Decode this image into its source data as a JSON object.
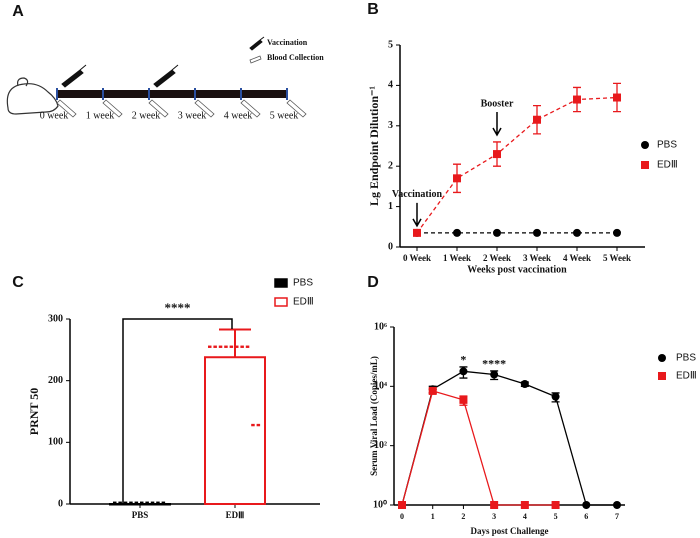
{
  "diagram": {
    "panel": "A",
    "legend": [
      "Vaccination",
      "Blood Collection"
    ],
    "weeks": [
      "0 week",
      "1 week",
      "2 week",
      "3 week",
      "4 week",
      "5 week"
    ]
  },
  "chart_data": [
    {
      "panel": "B",
      "type": "line",
      "categories": [
        "0 Week",
        "1 Week",
        "2 Week",
        "3 Week",
        "4 Week",
        "5 Week"
      ],
      "ylim": [
        0,
        5
      ],
      "yticks": [
        0,
        1,
        2,
        3,
        4,
        5
      ],
      "ylabel": "Lg Endpoint Dilution⁻¹",
      "xlabel": "Weeks post vaccination",
      "line_style": "dashed",
      "legend": "right",
      "annotations": [
        {
          "text": "Vaccination",
          "x": "0 Week"
        },
        {
          "text": "Booster",
          "x": "2 Week"
        }
      ],
      "series": [
        {
          "name": "PBS",
          "color": "#000000",
          "marker": "circle",
          "values": [
            0.35,
            0.35,
            0.35,
            0.35,
            0.35,
            0.35
          ]
        },
        {
          "name": "EDⅢ",
          "color": "#e8191c",
          "marker": "square",
          "values": [
            0.35,
            1.7,
            2.3,
            3.15,
            3.65,
            3.7
          ],
          "errors": [
            0,
            0.35,
            0.3,
            0.35,
            0.3,
            0.35
          ]
        }
      ]
    },
    {
      "panel": "C",
      "type": "bar",
      "categories": [
        "PBS",
        "EDⅢ"
      ],
      "colors": [
        "#000000",
        "#e8191c"
      ],
      "filled": [
        true,
        false
      ],
      "values": [
        0,
        238
      ],
      "errors": [
        0,
        45
      ],
      "points": [
        [
          2,
          2,
          2,
          2,
          2,
          2,
          2,
          2,
          2,
          2
        ],
        [
          255,
          255,
          255,
          255,
          255,
          255,
          255,
          255,
          128,
          128
        ]
      ],
      "ylim": [
        0,
        300
      ],
      "yticks": [
        0,
        100,
        200,
        300
      ],
      "ylabel": "PRNT 50",
      "significance": "****",
      "legend": "right"
    },
    {
      "panel": "D",
      "type": "line",
      "log": true,
      "x": [
        0,
        1,
        2,
        3,
        4,
        5,
        6,
        7
      ],
      "xlim": [
        0,
        7
      ],
      "xticks": [
        0,
        1,
        2,
        3,
        4,
        5,
        6,
        7
      ],
      "ylim": [
        1,
        1000000
      ],
      "yticks": [
        {
          "value": 1,
          "label": "10⁰"
        },
        {
          "value": 100,
          "label": "10²"
        },
        {
          "value": 10000,
          "label": "10⁴"
        },
        {
          "value": 1000000,
          "label": "10⁶"
        }
      ],
      "ylabel": "Serum Viral Load (Copies/mL)",
      "xlabel": "Days post Challenge",
      "line_style": "solid",
      "legend": "right",
      "annotations": [
        {
          "text": "*",
          "x": 2
        },
        {
          "text": "****",
          "x": 3
        }
      ],
      "series": [
        {
          "name": "PBS",
          "color": "#000000",
          "marker": "circle",
          "values": [
            1,
            8000,
            32000,
            25000,
            12000,
            4500,
            1,
            1
          ],
          "errors": [
            0,
            2000,
            13000,
            8000,
            2000,
            1500,
            0,
            0
          ]
        },
        {
          "name": "EDⅢ",
          "color": "#e8191c",
          "marker": "square",
          "values": [
            1,
            7000,
            3500,
            1,
            1,
            1,
            null,
            null
          ],
          "errors": [
            0,
            1000,
            1200,
            0,
            0,
            0,
            null,
            null
          ]
        }
      ]
    }
  ]
}
